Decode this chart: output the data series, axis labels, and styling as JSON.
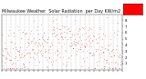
{
  "title": "Milwaukee Weather  Solar Radiation  per Day KW/m2",
  "bg_color": "#ffffff",
  "plot_bg": "#ffffff",
  "grid_color": "#888888",
  "dot_color_main": "#ff0000",
  "dot_color_alt": "#000000",
  "ylim": [
    0,
    9
  ],
  "yticks": [
    1,
    2,
    3,
    4,
    5,
    6,
    7,
    8
  ],
  "n_points": 365,
  "legend_box_color": "#ff0000",
  "title_fontsize": 3.5,
  "tick_fontsize": 2.8,
  "vgrid_interval": 14
}
